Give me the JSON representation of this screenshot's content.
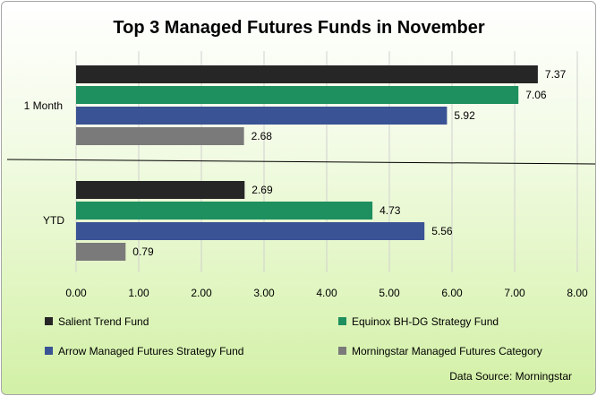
{
  "chart_data": {
    "type": "bar",
    "orientation": "horizontal",
    "title": "Top 3 Managed Futures Funds in November",
    "categories": [
      "1 Month",
      "YTD"
    ],
    "series": [
      {
        "name": "Salient Trend Fund",
        "values": [
          7.37,
          2.69
        ],
        "color": "#262626"
      },
      {
        "name": "Equinox BH-DG Strategy Fund",
        "values": [
          7.06,
          4.73
        ],
        "color": "#1e8f5e"
      },
      {
        "name": "Arrow Managed Futures Strategy Fund",
        "values": [
          5.92,
          5.56
        ],
        "color": "#3a5394"
      },
      {
        "name": "Morningstar Managed Futures Category",
        "values": [
          2.68,
          0.79
        ],
        "color": "#7a7a7a"
      }
    ],
    "xlim": [
      0,
      8
    ],
    "xticks": [
      "0.00",
      "1.00",
      "2.00",
      "3.00",
      "4.00",
      "5.00",
      "6.00",
      "7.00",
      "8.00"
    ],
    "grid": true,
    "legend_position": "bottom",
    "source_note": "Data Source: Morningstar"
  }
}
